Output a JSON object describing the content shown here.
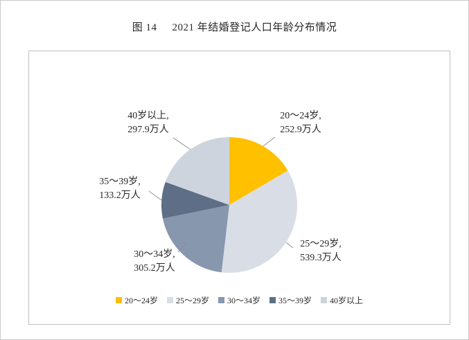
{
  "figure": {
    "label": "图 14",
    "title": "2021 年结婚登记人口年龄分布情况"
  },
  "chart_data": {
    "type": "pie",
    "title": "图 14 2021 年结婚登记人口年龄分布情况",
    "unit": "万人",
    "direction": "clockwise",
    "start_angle_deg": 0,
    "legend_position": "bottom",
    "series": [
      {
        "name": "20～24岁",
        "value": 252.9,
        "color": "#FFC000",
        "callout": [
          "20～24岁,",
          "252.9万人"
        ]
      },
      {
        "name": "25～29岁",
        "value": 539.3,
        "color": "#D9DEE6",
        "callout": [
          "25～29岁,",
          "539.3万人"
        ]
      },
      {
        "name": "30～34岁",
        "value": 305.2,
        "color": "#8797AE",
        "callout": [
          "30～34岁,",
          "305.2万人"
        ]
      },
      {
        "name": "35～39岁",
        "value": 133.2,
        "color": "#5D6E86",
        "callout": [
          "35～39岁,",
          "133.2万人"
        ]
      },
      {
        "name": "40岁以上",
        "value": 297.9,
        "color": "#CED4DD",
        "callout": [
          "40岁以上,",
          "297.9万人"
        ]
      }
    ]
  }
}
